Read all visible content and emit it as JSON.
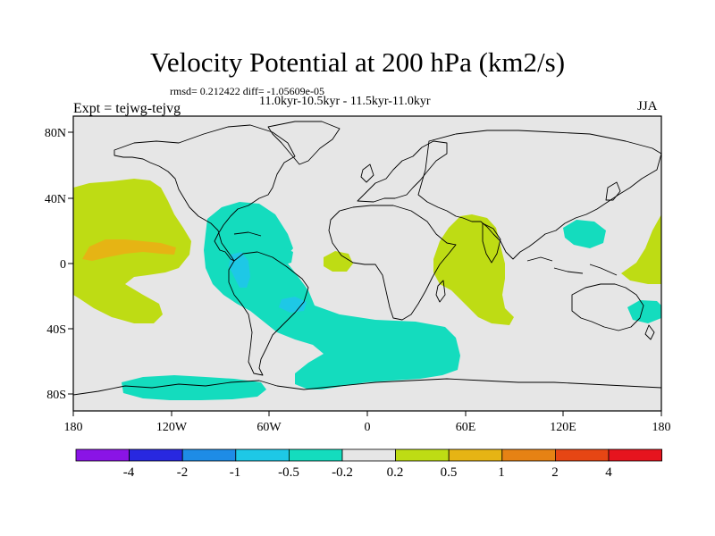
{
  "figure": {
    "title": "Velocity Potential at 200 hPa (km2/s)",
    "stats": "rmsd= 0.212422 diff= -1.05609e-05",
    "period": "11.0kyr-10.5kyr - 11.5kyr-11.0kyr",
    "experiment": "Expt = tejwg-tejvg",
    "season": "JJA"
  },
  "axes": {
    "lat_labels": [
      "80N",
      "40N",
      "0",
      "40S",
      "80S"
    ],
    "lon_labels": [
      "180",
      "120W",
      "60W",
      "0",
      "60E",
      "120E",
      "180"
    ]
  },
  "colorbar": {
    "labels": [
      "-4",
      "-2",
      "-1",
      "-0.5",
      "-0.2",
      "0.2",
      "0.5",
      "1",
      "2",
      "4"
    ],
    "colors": [
      "#8a14e6",
      "#2828e0",
      "#1e8ce6",
      "#1ec8e6",
      "#14dcbe",
      "#e6e6e6",
      "#bedc14",
      "#e6b414",
      "#e68214",
      "#e64614",
      "#e6141e"
    ]
  },
  "chart_data": {
    "type": "map",
    "projection": "cylindrical-equidistant",
    "lon_range": [
      -180,
      180
    ],
    "lat_range": [
      -90,
      90
    ],
    "variable": "Velocity Potential at 200 hPa",
    "units": "km2/s",
    "level_bounds": [
      -4,
      -2,
      -1,
      -0.5,
      -0.2,
      0.2,
      0.5,
      1,
      2,
      4
    ],
    "regions": [
      {
        "name": "central-pacific-positive",
        "level": "0.2 to 0.5"
      },
      {
        "name": "central-pacific-core",
        "level": "0.5 to 1"
      },
      {
        "name": "americas-atlantic-negative",
        "level": "-0.5 to -0.2"
      },
      {
        "name": "south-atlantic-negative",
        "level": "-0.5 to -0.2"
      },
      {
        "name": "antarctic-negative",
        "level": "-0.5 to -0.2"
      },
      {
        "name": "amazon-core",
        "level": "-1 to -0.5"
      },
      {
        "name": "indian-ocean-positive",
        "level": "0.2 to 0.5"
      },
      {
        "name": "west-pacific-positive",
        "level": "0.2 to 0.5"
      },
      {
        "name": "western-pacific-negative",
        "level": "-0.5 to -0.2"
      },
      {
        "name": "gulf-of-guinea-positive",
        "level": "0.2 to 0.5"
      }
    ]
  }
}
